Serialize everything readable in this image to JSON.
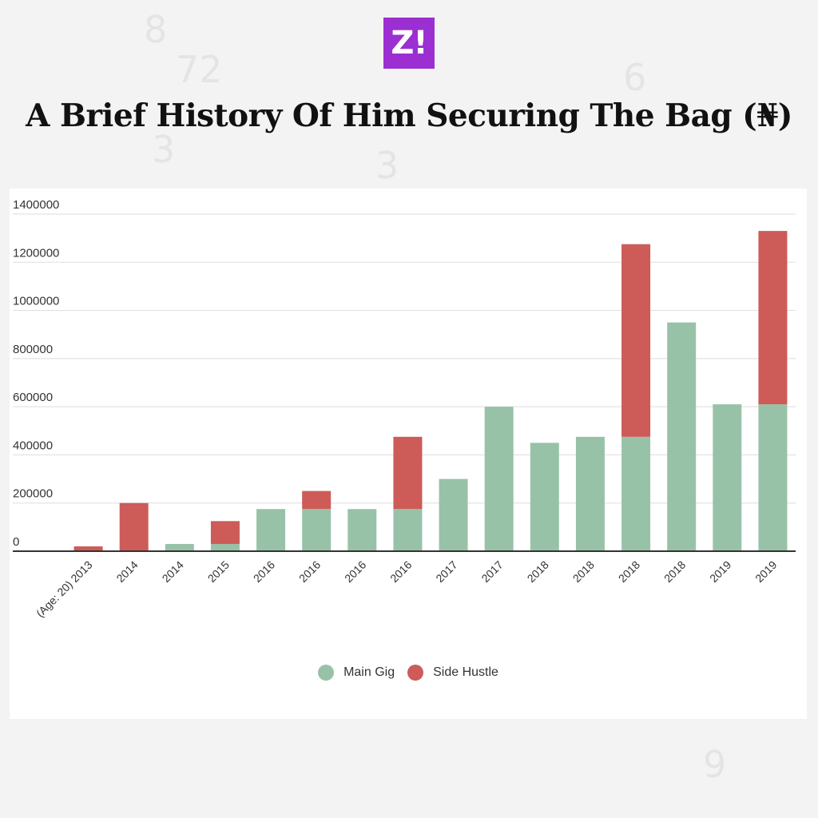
{
  "brand": {
    "logo_text": "Z!"
  },
  "title": "A Brief History Of Him Securing The Bag (₦)",
  "colors": {
    "main": "#98c2a8",
    "side": "#cd5b58",
    "logo": "#9b2fd1"
  },
  "legend": {
    "main": "Main Gig",
    "side": "Side Hustle"
  },
  "chart_data": {
    "type": "bar",
    "stacked": true,
    "title": "A Brief History Of Him Securing The Bag (₦)",
    "xlabel": "",
    "ylabel": "",
    "ylim": [
      0,
      1400000
    ],
    "yticks": [
      "0",
      "200000",
      "400000",
      "600000",
      "800000",
      "1000000",
      "1200000",
      "1400000"
    ],
    "categories": [
      "(Age: 20) 2013",
      "2014",
      "2014",
      "2015",
      "2016",
      "2016",
      "2016",
      "2016",
      "2017",
      "2017",
      "2018",
      "2018",
      "2018",
      "2018",
      "2019",
      "2019"
    ],
    "series": [
      {
        "name": "Main Gig",
        "values": [
          0,
          0,
          30000,
          30000,
          175000,
          175000,
          175000,
          175000,
          300000,
          600000,
          450000,
          475000,
          475000,
          950000,
          610000,
          610000
        ]
      },
      {
        "name": "Side Hustle",
        "values": [
          20000,
          200000,
          0,
          95000,
          0,
          75000,
          0,
          300000,
          0,
          0,
          0,
          0,
          800000,
          0,
          0,
          720000
        ]
      }
    ],
    "legend_position": "bottom"
  }
}
